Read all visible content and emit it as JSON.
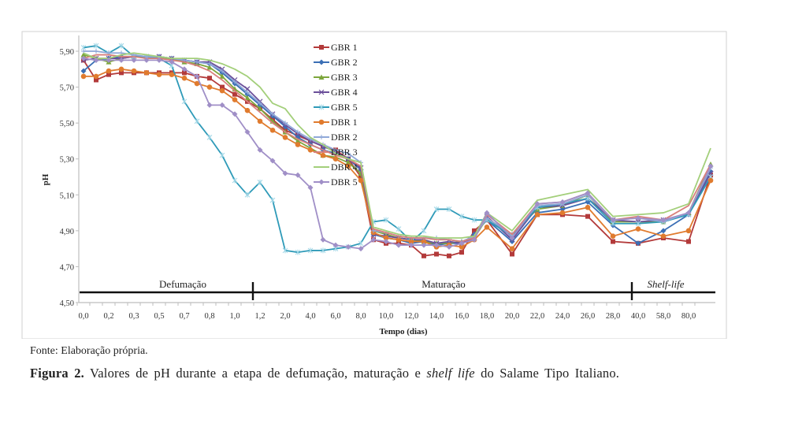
{
  "chart_data": {
    "type": "line",
    "title": "",
    "xlabel": "Tempo (dias)",
    "ylabel": "pH",
    "ylim": [
      4.5,
      5.9
    ],
    "yticks": [
      "4,50",
      "4,70",
      "4,90",
      "5,10",
      "5,30",
      "5,50",
      "5,70",
      "5,90"
    ],
    "ytick_values": [
      4.5,
      4.7,
      4.9,
      5.1,
      5.3,
      5.5,
      5.7,
      5.9
    ],
    "categories": [
      "0,0",
      "",
      "0,2",
      "",
      "0,3",
      "",
      "0,5",
      "",
      "0,7",
      "",
      "0,8",
      "",
      "1,0",
      "",
      "1,2",
      "",
      "2,0",
      "",
      "4,0",
      "",
      "6,0",
      "",
      "8,0",
      "",
      "10,0",
      "",
      "12,0",
      "",
      "14,0",
      "",
      "16,0",
      "",
      "18,0",
      "",
      "20,0",
      "",
      "22,0",
      "",
      "24,0",
      "",
      "26,0",
      "",
      "28,0",
      "",
      "40,0",
      "",
      "58,0",
      "",
      "80,0"
    ],
    "legend_position": "top-center",
    "phases": [
      {
        "label": "Defumação",
        "italic": false
      },
      {
        "label": "Maturação",
        "italic": false
      },
      {
        "label": "Shelf-life",
        "italic": true
      }
    ],
    "series": [
      {
        "name": "GBR 1",
        "color": "#b33a3a",
        "marker": "square",
        "values": [
          5.85,
          5.74,
          5.77,
          5.78,
          5.78,
          5.78,
          5.78,
          5.78,
          5.78,
          5.76,
          5.75,
          5.7,
          5.66,
          5.62,
          5.58,
          5.52,
          5.46,
          5.43,
          5.4,
          5.37,
          5.35,
          5.3,
          5.2,
          4.85,
          4.83,
          4.83,
          4.82,
          4.76,
          4.77,
          4.76,
          4.78,
          4.9,
          4.96,
          null,
          4.77,
          null,
          4.99,
          null,
          4.99,
          null,
          4.98,
          null,
          4.84,
          null,
          4.83,
          null,
          4.86,
          null,
          4.84,
          null,
          4.92,
          null,
          null,
          null,
          null,
          null,
          5.21
        ]
      },
      {
        "name": "GBR 2",
        "color": "#3b6fb5",
        "marker": "diamond",
        "values": [
          5.79,
          5.85,
          5.86,
          5.87,
          5.87,
          5.87,
          5.87,
          5.86,
          5.85,
          5.84,
          5.83,
          5.78,
          5.72,
          5.66,
          5.6,
          5.54,
          5.48,
          5.42,
          5.38,
          5.35,
          5.33,
          5.3,
          5.24,
          4.88,
          4.86,
          4.85,
          4.83,
          4.84,
          4.82,
          4.83,
          4.83,
          4.88,
          4.96,
          null,
          4.84,
          null,
          5.0,
          null,
          5.02,
          null,
          5.06,
          null,
          4.93,
          null,
          4.83,
          null,
          4.9,
          null,
          4.99,
          null,
          4.97,
          null,
          null,
          null,
          null,
          null,
          5.23
        ]
      },
      {
        "name": "GBR 3",
        "color": "#7da63c",
        "marker": "triangle",
        "values": [
          5.88,
          5.86,
          5.84,
          5.86,
          5.87,
          5.87,
          5.86,
          5.86,
          5.84,
          5.83,
          5.81,
          5.76,
          5.69,
          5.64,
          5.58,
          5.51,
          5.45,
          5.4,
          5.36,
          5.32,
          5.31,
          5.28,
          5.22,
          4.9,
          4.88,
          4.86,
          4.85,
          4.84,
          4.83,
          4.83,
          4.84,
          4.86,
          4.97,
          null,
          4.88,
          null,
          5.02,
          null,
          5.04,
          null,
          5.1,
          null,
          4.95,
          null,
          4.95,
          null,
          4.95,
          null,
          5.0,
          null,
          5.0,
          null,
          null,
          null,
          null,
          null,
          5.27
        ]
      },
      {
        "name": "GBR 4",
        "color": "#6b4f9a",
        "marker": "x",
        "values": [
          5.85,
          5.86,
          5.86,
          5.86,
          5.87,
          5.87,
          5.87,
          5.86,
          5.85,
          5.84,
          5.84,
          5.8,
          5.74,
          5.69,
          5.62,
          5.55,
          5.49,
          5.44,
          5.4,
          5.37,
          5.34,
          5.3,
          5.25,
          4.88,
          4.87,
          4.86,
          4.85,
          4.85,
          4.83,
          4.84,
          4.83,
          4.86,
          4.98,
          null,
          4.85,
          null,
          5.03,
          null,
          5.04,
          null,
          5.08,
          null,
          4.96,
          null,
          4.95,
          null,
          4.96,
          null,
          4.99,
          null,
          5.09,
          null,
          null,
          null,
          null,
          null,
          5.22
        ]
      },
      {
        "name": "GBR 5",
        "color": "#2e9ab8",
        "marker": "star",
        "values": [
          5.92,
          5.93,
          5.89,
          5.93,
          5.87,
          5.87,
          5.86,
          5.82,
          5.62,
          5.51,
          5.42,
          5.32,
          5.18,
          5.1,
          5.17,
          5.07,
          4.79,
          4.78,
          4.79,
          4.79,
          4.8,
          4.81,
          4.83,
          4.95,
          4.96,
          4.91,
          4.84,
          4.9,
          5.02,
          5.02,
          4.98,
          4.96,
          4.96,
          null,
          4.87,
          null,
          5.03,
          null,
          5.05,
          null,
          5.08,
          null,
          4.94,
          null,
          4.94,
          null,
          4.95,
          null,
          4.99,
          null,
          5.0,
          null,
          null,
          null,
          null,
          null,
          5.2
        ]
      },
      {
        "name": "DBR 1",
        "color": "#e07b2e",
        "marker": "circle",
        "values": [
          5.76,
          5.76,
          5.79,
          5.8,
          5.79,
          5.78,
          5.77,
          5.77,
          5.75,
          5.72,
          5.7,
          5.68,
          5.63,
          5.57,
          5.51,
          5.46,
          5.42,
          5.38,
          5.35,
          5.32,
          5.3,
          5.26,
          5.18,
          4.89,
          4.86,
          4.85,
          4.84,
          4.84,
          4.81,
          4.82,
          4.81,
          4.85,
          4.92,
          null,
          4.8,
          null,
          4.99,
          null,
          5.0,
          null,
          5.03,
          null,
          4.87,
          null,
          4.91,
          null,
          4.87,
          null,
          4.9,
          null,
          4.99,
          null,
          null,
          null,
          null,
          null,
          5.18
        ]
      },
      {
        "name": "DBR 2",
        "color": "#8fa8d8",
        "marker": "plus",
        "values": [
          5.9,
          5.9,
          5.89,
          5.89,
          5.88,
          5.87,
          5.87,
          5.86,
          5.85,
          5.84,
          5.83,
          5.79,
          5.73,
          5.67,
          5.61,
          5.55,
          5.5,
          5.45,
          5.41,
          5.38,
          5.35,
          5.33,
          5.28,
          4.9,
          4.89,
          4.87,
          4.86,
          4.86,
          4.86,
          4.85,
          4.84,
          4.87,
          4.97,
          null,
          4.88,
          null,
          5.04,
          null,
          5.05,
          null,
          5.1,
          null,
          4.96,
          null,
          4.97,
          null,
          4.95,
          null,
          5.0,
          null,
          5.02,
          null,
          null,
          null,
          null,
          null,
          5.25
        ]
      },
      {
        "name": "DBR 3",
        "color": "#d9807c",
        "marker": "none",
        "values": [
          5.86,
          5.88,
          5.88,
          5.87,
          5.87,
          5.86,
          5.86,
          5.85,
          5.84,
          5.82,
          5.79,
          5.74,
          5.68,
          5.62,
          5.56,
          5.5,
          5.45,
          5.41,
          5.38,
          5.35,
          5.32,
          5.3,
          5.26,
          4.91,
          4.89,
          4.87,
          4.86,
          4.86,
          4.85,
          4.85,
          4.84,
          4.86,
          4.99,
          null,
          4.88,
          null,
          5.05,
          null,
          5.06,
          null,
          5.11,
          null,
          4.96,
          null,
          4.98,
          null,
          4.96,
          null,
          5.04,
          null,
          5.03,
          null,
          null,
          null,
          null,
          null,
          5.27
        ]
      },
      {
        "name": "DBR 4",
        "color": "#a3cf7a",
        "marker": "none",
        "values": [
          5.89,
          5.86,
          5.86,
          5.88,
          5.89,
          5.88,
          5.87,
          5.86,
          5.86,
          5.86,
          5.85,
          5.83,
          5.8,
          5.76,
          5.7,
          5.61,
          5.58,
          5.49,
          5.42,
          5.38,
          5.33,
          5.3,
          5.28,
          4.92,
          4.9,
          4.88,
          4.87,
          4.87,
          4.86,
          4.86,
          4.86,
          4.87,
          5.0,
          null,
          4.9,
          null,
          5.07,
          null,
          5.1,
          null,
          5.13,
          null,
          4.98,
          null,
          4.99,
          null,
          5.0,
          null,
          5.05,
          null,
          5.07,
          null,
          null,
          null,
          null,
          null,
          5.36
        ]
      },
      {
        "name": "DBR 5",
        "color": "#a08fc7",
        "marker": "diamond",
        "values": [
          5.86,
          5.85,
          5.85,
          5.85,
          5.85,
          5.85,
          5.85,
          5.84,
          5.8,
          5.76,
          5.6,
          5.6,
          5.55,
          5.45,
          5.35,
          5.29,
          5.22,
          5.21,
          5.14,
          4.85,
          4.82,
          4.81,
          4.8,
          4.85,
          4.84,
          4.82,
          4.82,
          4.82,
          4.82,
          4.81,
          4.83,
          4.85,
          5.0,
          null,
          4.86,
          null,
          5.05,
          null,
          5.06,
          null,
          5.11,
          null,
          4.96,
          null,
          4.97,
          null,
          4.96,
          null,
          5.0,
          null,
          5.02,
          null,
          null,
          null,
          null,
          null,
          5.26
        ]
      }
    ]
  },
  "source_text": "Fonte: Elaboração própria.",
  "caption": {
    "label": "Figura 2.",
    "text_before": " Valores de pH durante a etapa de defumação, maturação e ",
    "italic": "shelf life",
    "text_after": " do Salame Tipo Italiano."
  }
}
